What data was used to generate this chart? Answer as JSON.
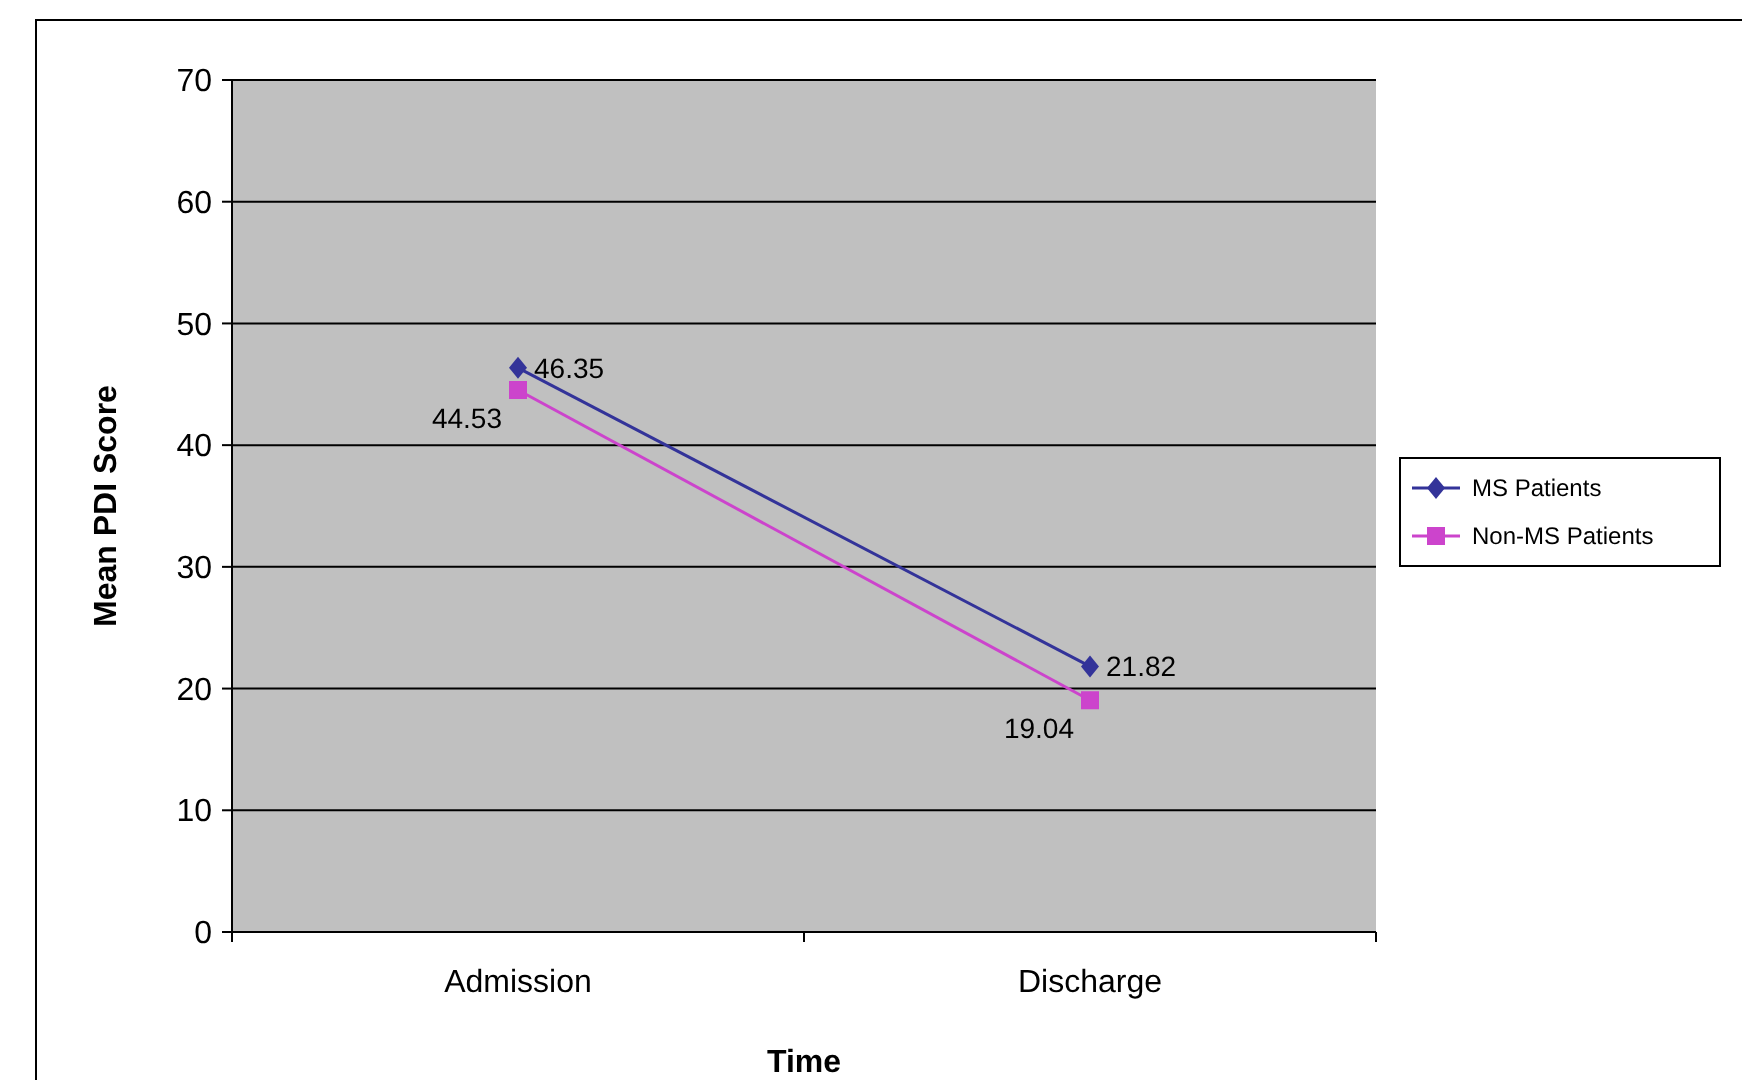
{
  "chart_data": {
    "type": "line",
    "xlabel": "Time",
    "ylabel": "Mean PDI Score",
    "categories": [
      "Admission",
      "Discharge"
    ],
    "series": [
      {
        "name": "MS Patients",
        "color": "#333399",
        "marker": "diamond",
        "values": [
          46.35,
          21.82
        ]
      },
      {
        "name": "Non-MS Patients",
        "color": "#cc44cc",
        "marker": "square",
        "values": [
          44.53,
          19.04
        ]
      }
    ],
    "ylim": [
      0,
      70
    ],
    "yticks": [
      0,
      10,
      20,
      30,
      40,
      50,
      60,
      70
    ],
    "grid": "y",
    "legend": "right",
    "data_labels": true,
    "line_style": "solid"
  }
}
